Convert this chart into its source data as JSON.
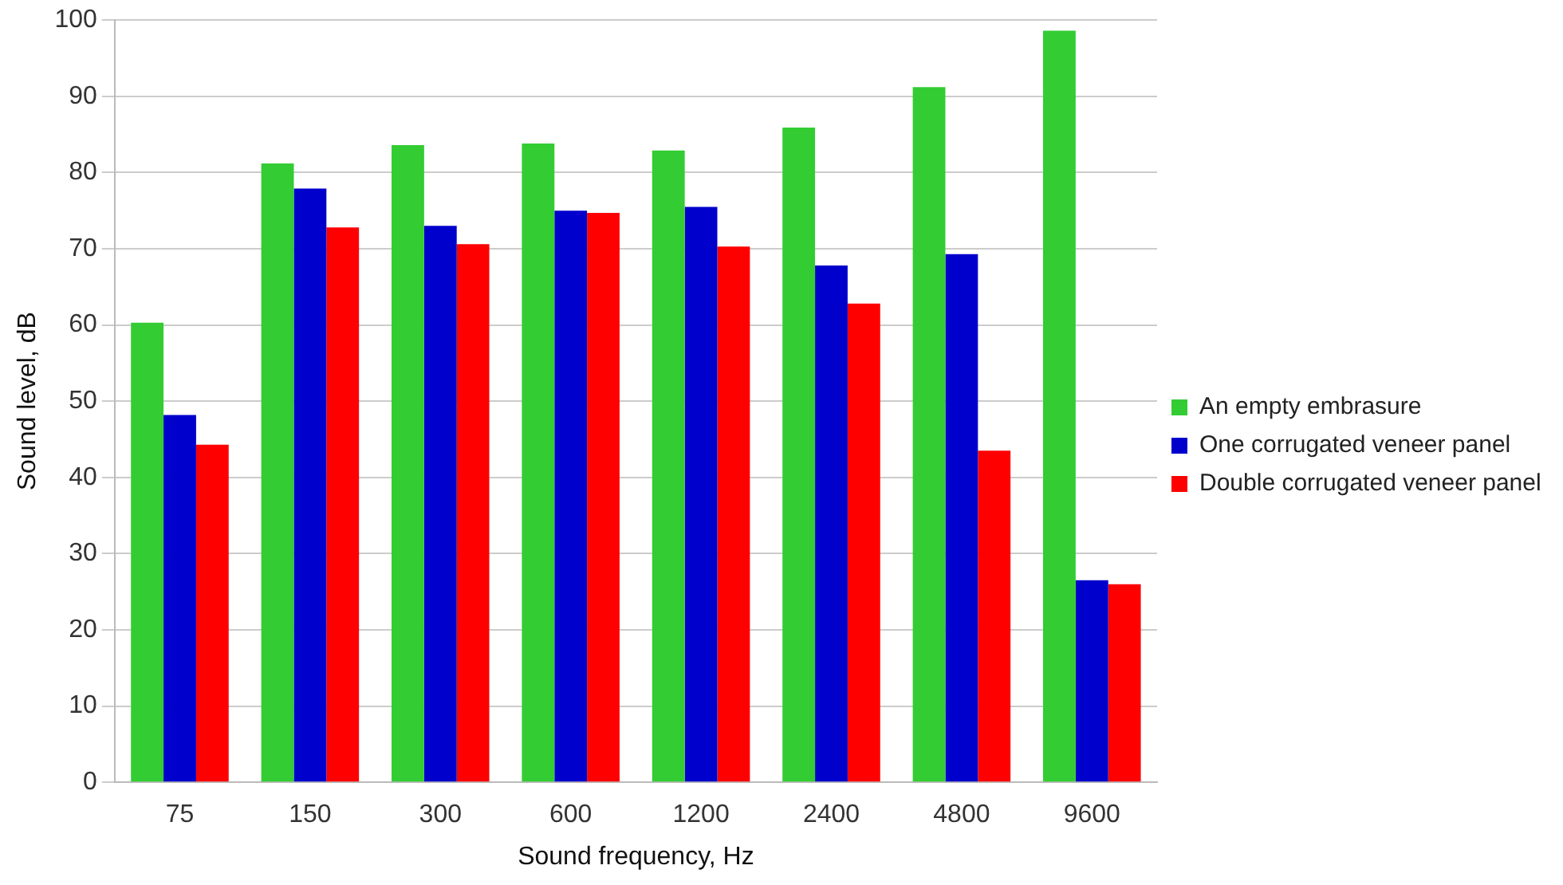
{
  "chart_data": {
    "type": "bar",
    "xlabel": "Sound frequency, Hz",
    "ylabel": "Sound level, dB",
    "categories": [
      "75",
      "150",
      "300",
      "600",
      "1200",
      "2400",
      "4800",
      "9600"
    ],
    "series": [
      {
        "name": "An empty embrasure",
        "color": "#33cc33",
        "values": [
          60.3,
          81.2,
          83.6,
          83.8,
          82.9,
          85.9,
          91.2,
          98.6
        ]
      },
      {
        "name": "One corrugated veneer panel",
        "color": "#0000cc",
        "values": [
          48.2,
          77.9,
          73.0,
          75.0,
          75.5,
          67.8,
          69.3,
          26.5
        ]
      },
      {
        "name": "Double corrugated veneer panel",
        "color": "#ff0000",
        "values": [
          44.3,
          72.8,
          70.6,
          74.7,
          70.3,
          62.8,
          43.5,
          26.0
        ]
      }
    ],
    "ylim": [
      0,
      100
    ],
    "yticks": [
      0,
      10,
      20,
      30,
      40,
      50,
      60,
      70,
      80,
      90,
      100
    ],
    "grid": "y",
    "legend": "right"
  }
}
